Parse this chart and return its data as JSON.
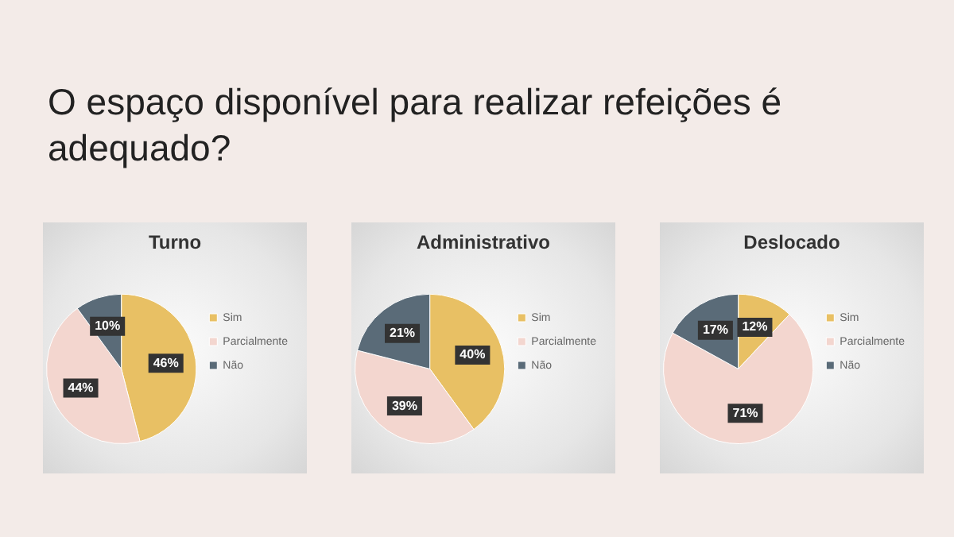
{
  "chart_data": [
    {
      "type": "other",
      "title": "O espaço disponível para realizar refeições é adequado?"
    },
    {
      "type": "pie",
      "title": "Turno",
      "categories": [
        "Sim",
        "Parcialmente",
        "Não"
      ],
      "values": [
        46,
        44,
        10
      ],
      "value_labels": [
        "46%",
        "44%",
        "10%"
      ],
      "colors": [
        "#e8c064",
        "#f3d6cf",
        "#5a6b78"
      ],
      "legend": "right"
    },
    {
      "type": "pie",
      "title": "Administrativo",
      "categories": [
        "Sim",
        "Parcialmente",
        "Não"
      ],
      "values": [
        40,
        39,
        21
      ],
      "value_labels": [
        "40%",
        "39%",
        "21%"
      ],
      "colors": [
        "#e8c064",
        "#f3d6cf",
        "#5a6b78"
      ],
      "legend": "right"
    },
    {
      "type": "pie",
      "title": "Deslocado",
      "categories": [
        "Sim",
        "Parcialmente",
        "Não"
      ],
      "values": [
        12,
        71,
        17
      ],
      "value_labels": [
        "12%",
        "71%",
        "17%"
      ],
      "colors": [
        "#e8c064",
        "#f3d6cf",
        "#5a6b78"
      ],
      "legend": "right"
    }
  ]
}
